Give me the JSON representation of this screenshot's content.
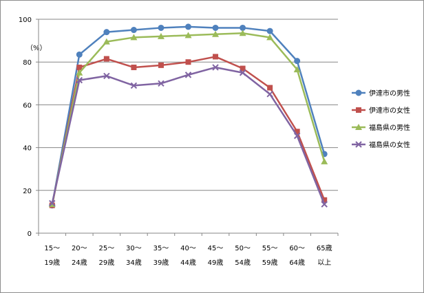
{
  "chart_data": {
    "type": "line",
    "title": "",
    "xlabel": "",
    "ylabel": "（%）",
    "ylim": [
      0,
      100
    ],
    "yticks": [
      0,
      20,
      40,
      60,
      80,
      100
    ],
    "grid": "horizontal",
    "legend_position": "right",
    "categories": [
      [
        "15～",
        "19歳"
      ],
      [
        "20～",
        "24歳"
      ],
      [
        "25～",
        "29歳"
      ],
      [
        "30～",
        "34歳"
      ],
      [
        "35～",
        "39歳"
      ],
      [
        "40～",
        "44歳"
      ],
      [
        "45～",
        "49歳"
      ],
      [
        "50～",
        "54歳"
      ],
      [
        "55～",
        "59歳"
      ],
      [
        "60～",
        "64歳"
      ],
      [
        "65歳",
        "以上"
      ]
    ],
    "series": [
      {
        "name": "伊達市の男性",
        "color": "#4f81bd",
        "marker": "circle",
        "values": [
          13,
          83.5,
          94,
          95,
          96,
          96.5,
          96,
          96,
          94.5,
          80.5,
          37
        ]
      },
      {
        "name": "伊達市の女性",
        "color": "#c0504d",
        "marker": "square",
        "values": [
          13,
          77.5,
          81.5,
          77.5,
          78.5,
          80,
          82.5,
          77,
          68,
          47.5,
          15.5
        ]
      },
      {
        "name": "福島県の男性",
        "color": "#9bbb59",
        "marker": "triangle",
        "values": [
          13.5,
          75,
          89.5,
          91.5,
          92,
          92.5,
          93,
          93.5,
          91.5,
          76.5,
          33.5
        ]
      },
      {
        "name": "福島県の女性",
        "color": "#8064a2",
        "marker": "x",
        "values": [
          14,
          71.5,
          73.5,
          69,
          70,
          74,
          77.5,
          75,
          65,
          45.5,
          13.5
        ]
      }
    ]
  }
}
